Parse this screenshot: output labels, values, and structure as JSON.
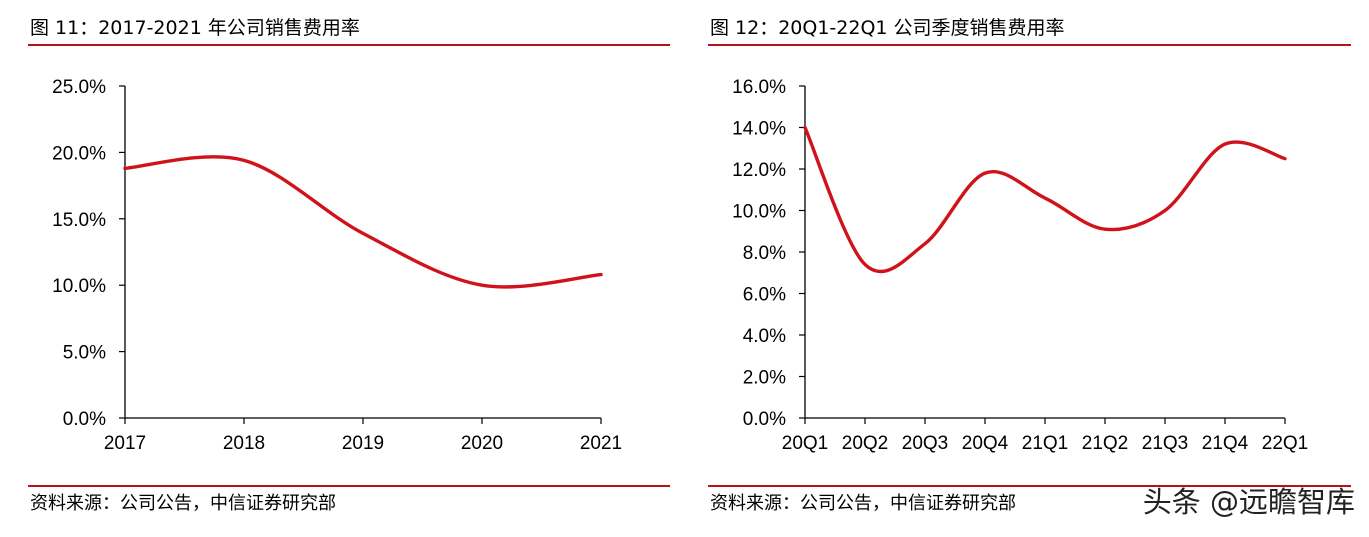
{
  "figures": [
    {
      "title": "图 11：2017-2021 年公司销售费用率",
      "source": "资料来源：公司公告，中信证券研究部"
    },
    {
      "title": "图 12：20Q1-22Q1 公司季度销售费用率",
      "source": "资料来源：公司公告，中信证券研究部"
    }
  ],
  "watermark": "头条 @远瞻智库",
  "chart_data": [
    {
      "type": "line",
      "title": "图 11：2017-2021 年公司销售费用率",
      "xlabel": "",
      "ylabel": "",
      "categories": [
        "2017",
        "2018",
        "2019",
        "2020",
        "2021"
      ],
      "series": [
        {
          "values": [
            18.8,
            19.4,
            13.9,
            10.0,
            10.8
          ],
          "color": "#d0121b"
        }
      ],
      "ylim": [
        0,
        25
      ],
      "ytick_values": [
        0,
        5,
        10,
        15,
        20,
        25
      ],
      "ytick_labels": [
        "0.0%",
        "5.0%",
        "10.0%",
        "15.0%",
        "20.0%",
        "25.0%"
      ],
      "smooth": true,
      "grid": false,
      "legend": "none"
    },
    {
      "type": "line",
      "title": "图 12：20Q1-22Q1 公司季度销售费用率",
      "xlabel": "",
      "ylabel": "",
      "categories": [
        "20Q1",
        "20Q2",
        "20Q3",
        "20Q4",
        "21Q1",
        "21Q2",
        "21Q3",
        "21Q4",
        "22Q1"
      ],
      "series": [
        {
          "values": [
            14.0,
            7.4,
            8.4,
            11.8,
            10.6,
            9.1,
            10.0,
            13.2,
            12.5
          ],
          "color": "#d0121b"
        }
      ],
      "ylim": [
        0,
        16
      ],
      "ytick_values": [
        0,
        2,
        4,
        6,
        8,
        10,
        12,
        14,
        16
      ],
      "ytick_labels": [
        "0.0%",
        "2.0%",
        "4.0%",
        "6.0%",
        "8.0%",
        "10.0%",
        "12.0%",
        "14.0%",
        "16.0%"
      ],
      "smooth": true,
      "grid": false,
      "legend": "none"
    }
  ]
}
